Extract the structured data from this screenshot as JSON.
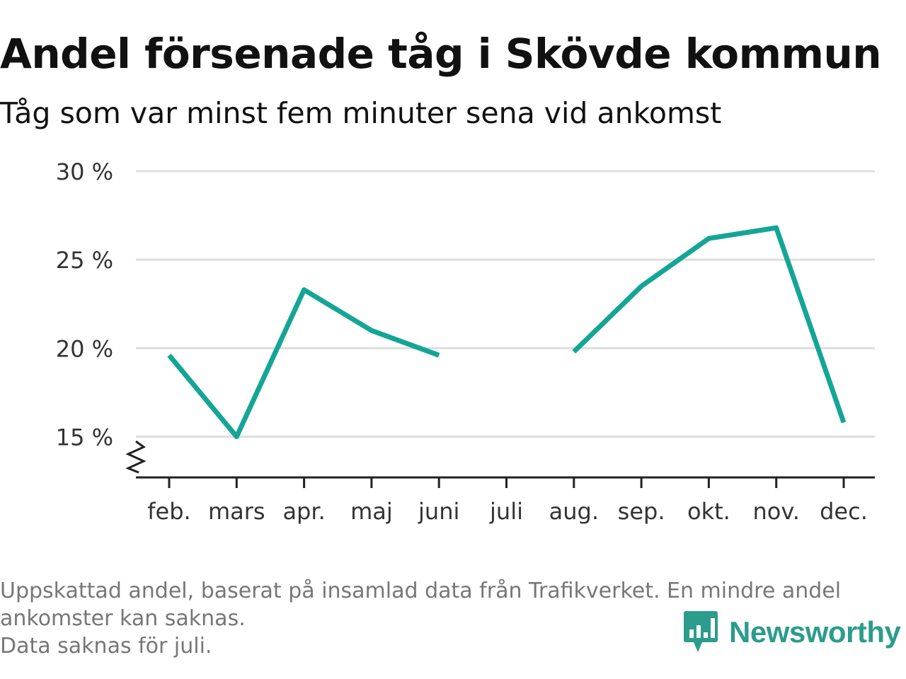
{
  "header": {
    "title": "Andel försenade tåg i Skövde kommun",
    "subtitle": "Tåg som var minst fem minuter sena vid ankomst"
  },
  "chart_data": {
    "type": "line",
    "categories": [
      "feb.",
      "mars",
      "apr.",
      "maj",
      "juni",
      "juli",
      "aug.",
      "sep.",
      "okt.",
      "nov.",
      "dec."
    ],
    "series": [
      {
        "values": [
          19.6,
          15.0,
          23.3,
          21.0,
          19.6,
          null,
          19.8,
          23.5,
          26.2,
          26.8,
          15.8
        ]
      }
    ],
    "y_ticks": [
      15,
      20,
      25,
      30
    ],
    "y_tick_labels": [
      "15 %",
      "20 %",
      "25 %",
      "30 %"
    ],
    "ylim": [
      12.7,
      30
    ],
    "y_axis_break": true,
    "grid": true,
    "line_color": "#14a596"
  },
  "footer": {
    "notes": [
      "Uppskattad andel, baserat på insamlad data från Trafikverket. En mindre andel",
      "ankomster kan saknas.",
      "Data saknas för juli."
    ],
    "brand": "Newsworthy",
    "brand_icon": "bar-chart-speech-bubble-icon",
    "brand_color": "#2c9c8c"
  }
}
